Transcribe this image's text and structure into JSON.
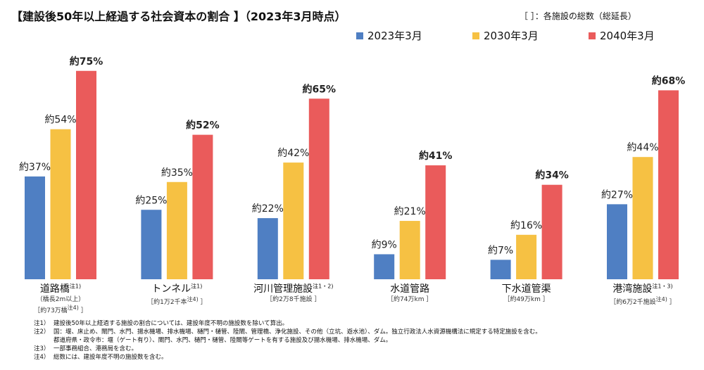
{
  "chart_data": {
    "type": "bar",
    "title": "【建設後50年以上経過する社会資本の割合 】（2023年3月時点）",
    "bracket_note": "［ ］：各施設の総数（総延長）",
    "ylim": [
      0,
      100
    ],
    "grid": false,
    "legend_position": "top-right",
    "value_prefix": "約",
    "value_suffix": "%",
    "categories": [
      {
        "name": "道路橋",
        "note": "注1)",
        "sub": [
          "（橋長2m以上）",
          "［約73万橋"
        ],
        "sub_note": "注4)",
        "sub_end": "］"
      },
      {
        "name": "トンネル",
        "note": "注1)",
        "sub": [
          "［約1万2千本"
        ],
        "sub_note": "注4)",
        "sub_end": "］"
      },
      {
        "name": "河川管理施設",
        "note": "注1・2)",
        "sub": [
          "［約2万8千施設"
        ],
        "sub_note": "",
        "sub_end": "］"
      },
      {
        "name": "水道管路",
        "note": "",
        "sub": [
          "［約74万km"
        ],
        "sub_note": "",
        "sub_end": "］"
      },
      {
        "name": "下水道管渠",
        "note": "",
        "sub": [
          "［約49万km"
        ],
        "sub_note": "",
        "sub_end": "］"
      },
      {
        "name": "港湾施設",
        "note": "注1・3)",
        "sub": [
          "［約6万2千施設"
        ],
        "sub_note": "注4)",
        "sub_end": "］"
      }
    ],
    "series": [
      {
        "name": "2023年3月",
        "color": "#4f7fc3",
        "values": [
          37,
          25,
          22,
          9,
          7,
          27
        ]
      },
      {
        "name": "2030年3月",
        "color": "#f6c143",
        "values": [
          54,
          35,
          42,
          21,
          16,
          44
        ]
      },
      {
        "name": "2040年3月",
        "color": "#ea5b5b",
        "values": [
          75,
          52,
          65,
          41,
          34,
          68
        ]
      }
    ]
  },
  "notes": [
    {
      "key": "注1）",
      "text": "建設後50年以上経過する施設の割合については、建設年度不明の施設数を除いて算出。"
    },
    {
      "key": "注2）",
      "text": "国：堰、床止め、閘門、水門、揚水機場、排水機場、樋門・樋管、陸閘、管理橋、浄化施設、その他（立坑、遊水池）、ダム。独立行政法人水資源機構法に規定する特定施設を含む。",
      "cont": "都道府県・政令市：堰（ゲート有り）、閘門、水門、樋門・樋管、陸閘等ゲートを有する施設及び揚水機場、排水機場、ダム。"
    },
    {
      "key": "注3）",
      "text": "一部事務組合、港務局を含む。"
    },
    {
      "key": "注4）",
      "text": "総数には、建設年度不明の施設数を含む。"
    }
  ]
}
